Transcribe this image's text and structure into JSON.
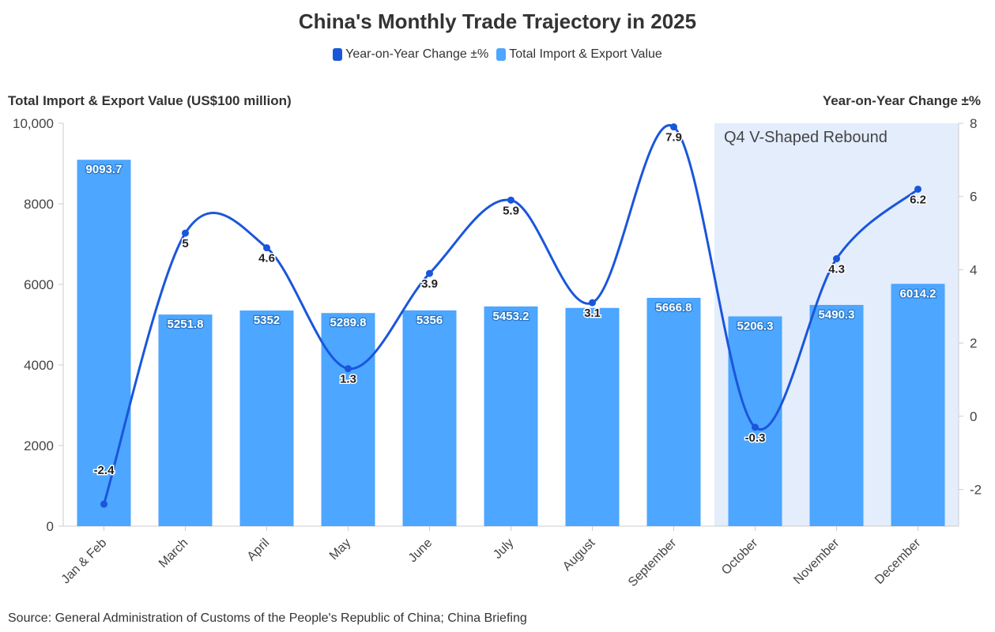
{
  "colors": {
    "line": "#1a56db",
    "bar": "#4da6ff",
    "highlight": "#e3edfc",
    "axis": "#cccccc",
    "text": "#333333"
  },
  "legend": {
    "line_label": "Year-on-Year Change ±%",
    "bar_label": "Total Import & Export Value",
    "line_icon": "square-swatch-icon",
    "bar_icon": "square-swatch-icon"
  },
  "source_note": "Source: General Administration of Customs of the People's Republic of China; China Briefing",
  "chart_data": {
    "type": "bar",
    "title": "China's Monthly Trade Trajectory in 2025",
    "xlabel": "",
    "ylabel": "Total Import & Export Value (US$100 million)",
    "y2label": "Year-on-Year Change ±%",
    "categories": [
      "Jan & Feb",
      "March",
      "April",
      "May",
      "June",
      "July",
      "August",
      "September",
      "October",
      "November",
      "December"
    ],
    "series": [
      {
        "name": "Total Import & Export Value",
        "type": "bar",
        "axis": "left",
        "values": [
          9093.7,
          5251.8,
          5352,
          5289.8,
          5356,
          5453.2,
          5416.5,
          5666.8,
          5206.3,
          5490.3,
          6014.2
        ],
        "labels": [
          "9093.7",
          "5251.8",
          "5352",
          "5289.8",
          "5356",
          "5453.2",
          "",
          "5666.8",
          "5206.3",
          "5490.3",
          "6014.2"
        ]
      },
      {
        "name": "Year-on-Year Change ±%",
        "type": "line",
        "axis": "right",
        "values": [
          -2.4,
          5,
          4.6,
          1.3,
          3.9,
          5.9,
          3.1,
          7.9,
          -0.3,
          4.3,
          6.2
        ],
        "labels": [
          "-2.4",
          "5",
          "4.6",
          "1.3",
          "3.9",
          "5.9",
          "3.1",
          "7.9",
          "-0.3",
          "4.3",
          "6.2"
        ]
      }
    ],
    "ylim": [
      0,
      10000
    ],
    "yticks": [
      0,
      2000,
      4000,
      6000,
      8000,
      10000
    ],
    "ytick_labels": [
      "0",
      "2000",
      "4000",
      "6000",
      "8000",
      "10,000"
    ],
    "y2lim": [
      -3,
      8
    ],
    "y2ticks": [
      -2,
      0,
      2,
      4,
      6,
      8
    ],
    "y2tick_labels": [
      "-2",
      "0",
      "2",
      "4",
      "6",
      "8"
    ],
    "annotation": {
      "text": "Q4 V-Shaped Rebound",
      "from_category": "October",
      "to_category": "December"
    },
    "grid": false,
    "legend_position": "top-center"
  }
}
